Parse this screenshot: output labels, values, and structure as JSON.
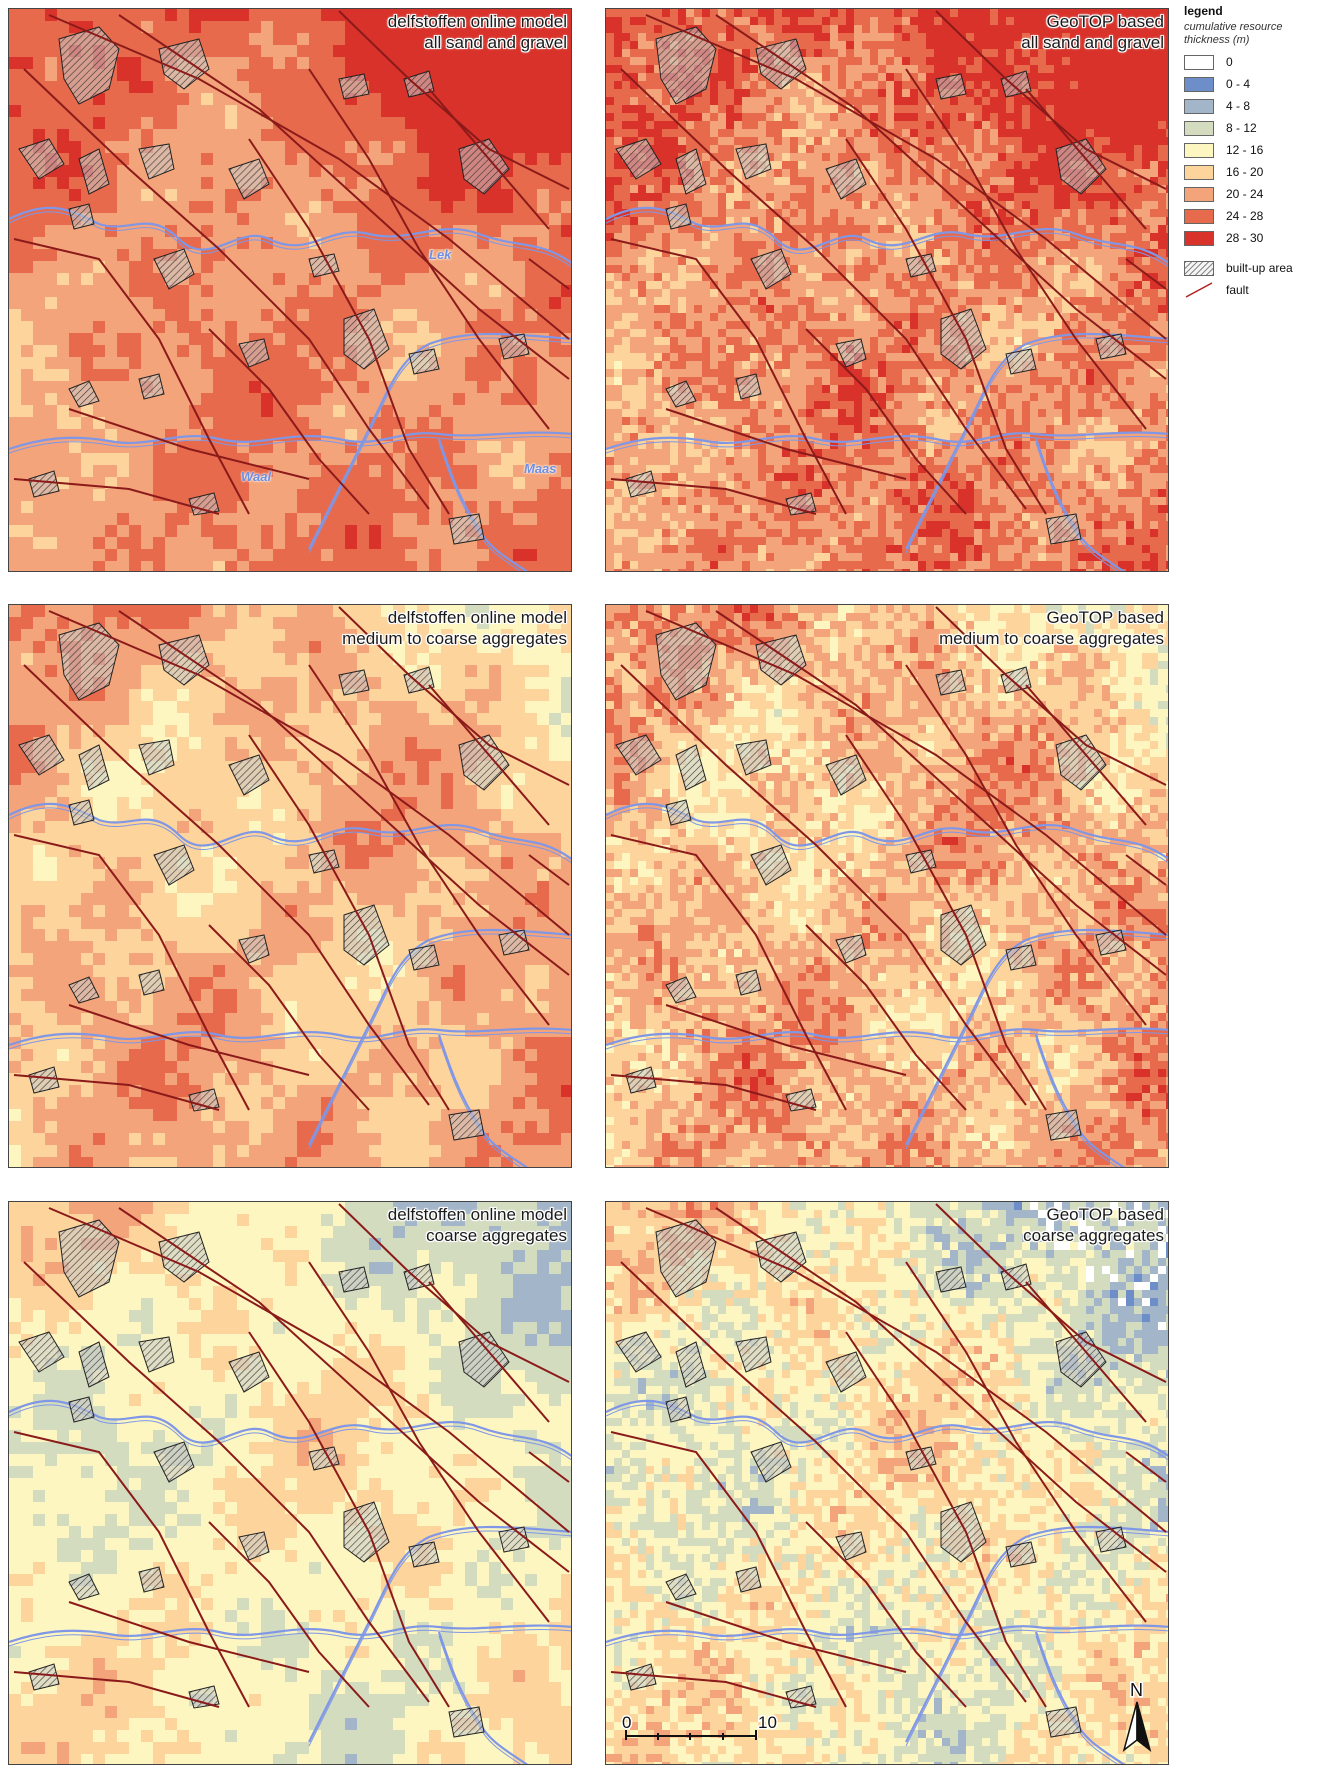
{
  "panels": [
    {
      "id": "p1",
      "title_line1": "delfstoffen online model",
      "title_line2": "all sand and gravel",
      "mode": 0,
      "source": "model"
    },
    {
      "id": "p2",
      "title_line1": "GeoTOP based",
      "title_line2": "all sand and gravel",
      "mode": 0,
      "source": "geotop"
    },
    {
      "id": "p3",
      "title_line1": "delfstoffen online model",
      "title_line2": "medium to coarse aggregates",
      "mode": 1,
      "source": "model"
    },
    {
      "id": "p4",
      "title_line1": "GeoTOP based",
      "title_line2": "medium to coarse aggregates",
      "mode": 1,
      "source": "geotop"
    },
    {
      "id": "p5",
      "title_line1": "delfstoffen online model",
      "title_line2": "coarse aggregates",
      "mode": 2,
      "source": "model"
    },
    {
      "id": "p6",
      "title_line1": "GeoTOP based",
      "title_line2": "coarse aggregates",
      "mode": 2,
      "source": "geotop"
    }
  ],
  "rivers": {
    "lek": "Lek",
    "waal": "Waal",
    "maas": "Maas"
  },
  "legend": {
    "title": "legend",
    "subtitle": "cumulative resource thickness (m)",
    "classes": [
      {
        "label": "0",
        "color": "#ffffff"
      },
      {
        "label": "0  -  4",
        "color": "#6d8ec9"
      },
      {
        "label": "4  -  8",
        "color": "#a3b5c9"
      },
      {
        "label": "8 - 12",
        "color": "#d3dcbf"
      },
      {
        "label": "12 - 16",
        "color": "#fdf6c0"
      },
      {
        "label": "16 - 20",
        "color": "#fcd49c"
      },
      {
        "label": "20 - 24",
        "color": "#f4a47a"
      },
      {
        "label": "24 - 28",
        "color": "#e86a4c"
      },
      {
        "label": "28 - 30",
        "color": "#d8322a"
      }
    ],
    "builtup_label": "built-up area",
    "fault_label": "fault"
  },
  "scalebar": {
    "start": "0",
    "end": "10 km"
  },
  "north": {
    "label": "N"
  },
  "colors": {
    "fault": "#8b1a1a",
    "river": "#7f97e6",
    "builtup_outline": "#222222"
  }
}
